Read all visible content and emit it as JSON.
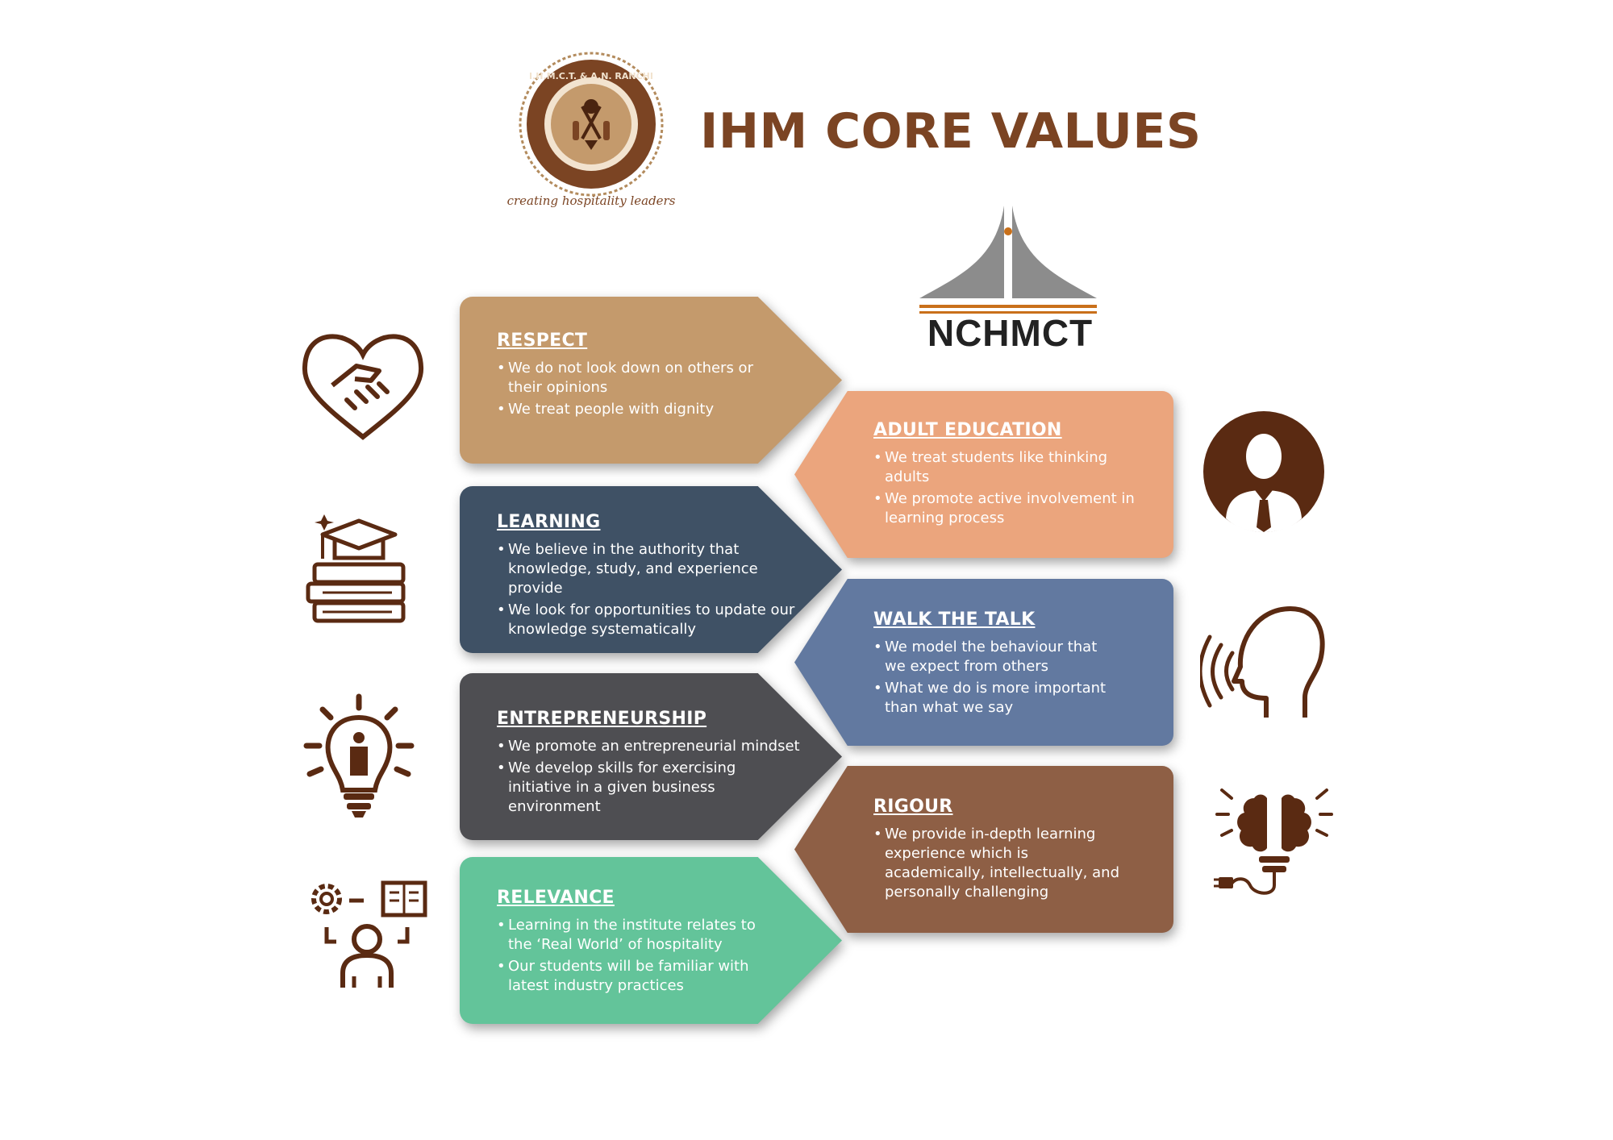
{
  "header": {
    "title": "IHM CORE VALUES",
    "logo_tagline": "creating hospitality leaders",
    "logo_ring_text": "I.H.M.C.T. & A.N. RANCHI",
    "partner_logo_text": "NCHMCT"
  },
  "colors": {
    "title": "#7b4423",
    "icon": "#5a2a12",
    "respect": "#c49a6c",
    "adult_education": "#eba57d",
    "learning": "#3f5165",
    "walk_the_talk": "#6279a0",
    "entrepreneurship": "#4e4e52",
    "rigour": "#8e5f45",
    "relevance": "#63c49a"
  },
  "values": [
    {
      "title": "RESPECT",
      "bullets": [
        "We do not look down on others or their opinions",
        "We treat people with dignity"
      ]
    },
    {
      "title": "ADULT EDUCATION",
      "bullets": [
        "We treat students like thinking adults",
        "We promote active involvement in learning process"
      ]
    },
    {
      "title": "LEARNING",
      "bullets": [
        "We believe in the authority that knowledge, study, and experience provide",
        "We look for opportunities to update our knowledge systematically"
      ]
    },
    {
      "title": "WALK THE TALK",
      "bullets": [
        "We model the behaviour that we expect from others",
        "What we do is more important than what we say"
      ]
    },
    {
      "title": "ENTREPRENEURSHIP",
      "bullets": [
        "We promote an entrepreneurial mindset",
        "We develop skills for exercising initiative in a given business environment"
      ]
    },
    {
      "title": "RIGOUR",
      "bullets": [
        "We provide in-depth learning experience which is academically, intellectually, and personally challenging"
      ]
    },
    {
      "title": "RELEVANCE",
      "bullets": [
        "Learning in the institute relates to the ‘Real World’ of hospitality",
        "Our students will be familiar with latest industry practices"
      ]
    }
  ],
  "icons": [
    "handshake-heart-icon",
    "graduation-books-icon",
    "lightbulb-person-icon",
    "person-gear-book-icon",
    "businessman-avatar-icon",
    "speaking-head-icon",
    "brain-bulb-icon"
  ]
}
